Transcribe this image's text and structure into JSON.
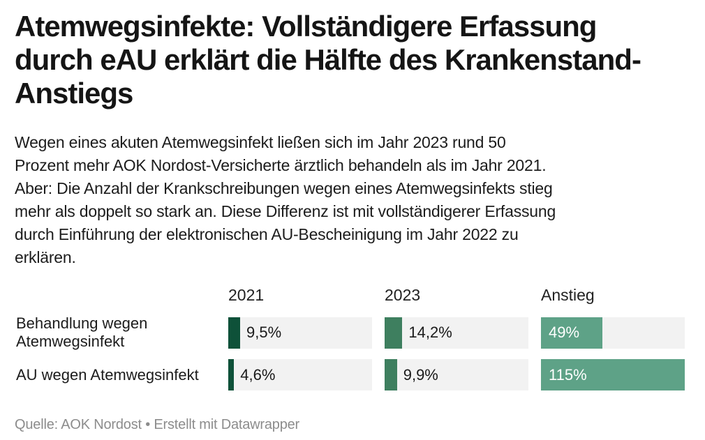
{
  "header": {
    "title": "Atemwegsinfekte: Vollständigere Erfassung\ndurch eAU erklärt die Hälfte des Krankenstand-\nAnstiegs",
    "description": "Wegen eines akuten Atemwegsinfekt ließen sich im Jahr 2023 rund 50\nProzent mehr AOK Nordost-Versicherte ärztlich behandeln als im Jahr 2021.\nAber: Die Anzahl der Krankschreibungen wegen eines Atemwegsinfekts stieg\nmehr als doppelt so stark an. Diese Differenz ist mit vollständigerer Erfassung\ndurch Einführung der elektronischen AU-Bescheinigung im Jahr 2022 zu\nerklären."
  },
  "chart_data": {
    "type": "bar",
    "subtype": "bar-column-table",
    "title": "Atemwegsinfekte: Vollständigere Erfassung durch eAU erklärt die Hälfte des Krankenstand-Anstiegs",
    "scale_max": 115,
    "grid": false,
    "legend": "none",
    "columns": [
      {
        "label": "2021",
        "color": "#0e5139",
        "value_inside": false
      },
      {
        "label": "2023",
        "color": "#3e7f5f",
        "value_inside": false
      },
      {
        "label": "Anstieg",
        "color": "#5ea287",
        "value_inside": true
      }
    ],
    "rows": [
      {
        "label": "Behandlung wegen Atemwegsinfekt",
        "values": [
          9.5,
          14.2,
          49
        ],
        "display": [
          "9,5%",
          "14,2%",
          "49%"
        ]
      },
      {
        "label": "AU wegen Atemwegsinfekt",
        "values": [
          4.6,
          9.9,
          115
        ],
        "display": [
          "4,6%",
          "9,9%",
          "115%"
        ]
      }
    ],
    "track_color": "#f2f2f2"
  },
  "footer": {
    "source_prefix": "Quelle:",
    "source": "AOK Nordost",
    "separator": "•",
    "attribution": "Erstellt mit Datawrapper"
  },
  "colors": {
    "background": "#ffffff",
    "title_text": "#151515",
    "body_text": "#1c1c1c",
    "footer_text": "#8c8c8c",
    "value_text_outside": "#1a1a1a",
    "value_text_inside": "#ffffff"
  }
}
